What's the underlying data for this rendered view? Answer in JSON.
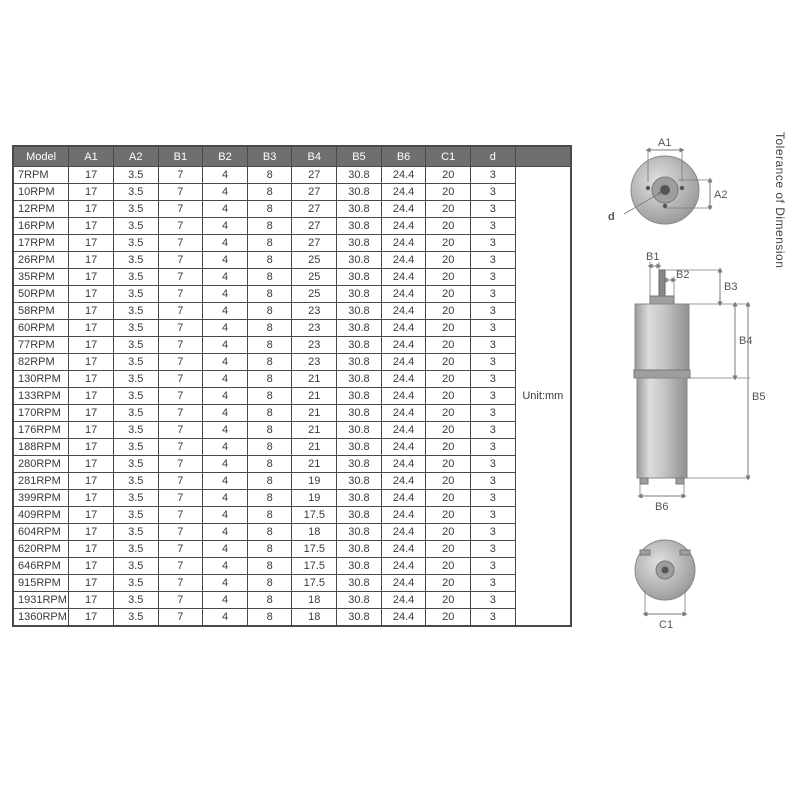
{
  "table": {
    "headers": [
      "Model",
      "A1",
      "A2",
      "B1",
      "B2",
      "B3",
      "B4",
      "B5",
      "B6",
      "C1",
      "d"
    ],
    "unit_label": "Unit:mm",
    "header_bg": "#6f6f6f",
    "header_fg": "#ffffff",
    "border_color": "#4a4a4a",
    "cell_fontsize": "11px",
    "rows": [
      {
        "model": "7RPM",
        "vals": [
          "17",
          "3.5",
          "7",
          "4",
          "8",
          "27",
          "30.8",
          "24.4",
          "20",
          "3"
        ]
      },
      {
        "model": "10RPM",
        "vals": [
          "17",
          "3.5",
          "7",
          "4",
          "8",
          "27",
          "30.8",
          "24.4",
          "20",
          "3"
        ]
      },
      {
        "model": "12RPM",
        "vals": [
          "17",
          "3.5",
          "7",
          "4",
          "8",
          "27",
          "30.8",
          "24.4",
          "20",
          "3"
        ]
      },
      {
        "model": "16RPM",
        "vals": [
          "17",
          "3.5",
          "7",
          "4",
          "8",
          "27",
          "30.8",
          "24.4",
          "20",
          "3"
        ]
      },
      {
        "model": "17RPM",
        "vals": [
          "17",
          "3.5",
          "7",
          "4",
          "8",
          "27",
          "30.8",
          "24.4",
          "20",
          "3"
        ]
      },
      {
        "model": "26RPM",
        "vals": [
          "17",
          "3.5",
          "7",
          "4",
          "8",
          "25",
          "30.8",
          "24.4",
          "20",
          "3"
        ]
      },
      {
        "model": "35RPM",
        "vals": [
          "17",
          "3.5",
          "7",
          "4",
          "8",
          "25",
          "30.8",
          "24.4",
          "20",
          "3"
        ]
      },
      {
        "model": "50RPM",
        "vals": [
          "17",
          "3.5",
          "7",
          "4",
          "8",
          "25",
          "30.8",
          "24.4",
          "20",
          "3"
        ]
      },
      {
        "model": "58RPM",
        "vals": [
          "17",
          "3.5",
          "7",
          "4",
          "8",
          "23",
          "30.8",
          "24.4",
          "20",
          "3"
        ]
      },
      {
        "model": "60RPM",
        "vals": [
          "17",
          "3.5",
          "7",
          "4",
          "8",
          "23",
          "30.8",
          "24.4",
          "20",
          "3"
        ]
      },
      {
        "model": "77RPM",
        "vals": [
          "17",
          "3.5",
          "7",
          "4",
          "8",
          "23",
          "30.8",
          "24.4",
          "20",
          "3"
        ]
      },
      {
        "model": "82RPM",
        "vals": [
          "17",
          "3.5",
          "7",
          "4",
          "8",
          "23",
          "30.8",
          "24.4",
          "20",
          "3"
        ]
      },
      {
        "model": "130RPM",
        "vals": [
          "17",
          "3.5",
          "7",
          "4",
          "8",
          "21",
          "30.8",
          "24.4",
          "20",
          "3"
        ]
      },
      {
        "model": "133RPM",
        "vals": [
          "17",
          "3.5",
          "7",
          "4",
          "8",
          "21",
          "30.8",
          "24.4",
          "20",
          "3"
        ]
      },
      {
        "model": "170RPM",
        "vals": [
          "17",
          "3.5",
          "7",
          "4",
          "8",
          "21",
          "30.8",
          "24.4",
          "20",
          "3"
        ]
      },
      {
        "model": "176RPM",
        "vals": [
          "17",
          "3.5",
          "7",
          "4",
          "8",
          "21",
          "30.8",
          "24.4",
          "20",
          "3"
        ]
      },
      {
        "model": "188RPM",
        "vals": [
          "17",
          "3.5",
          "7",
          "4",
          "8",
          "21",
          "30.8",
          "24.4",
          "20",
          "3"
        ]
      },
      {
        "model": "280RPM",
        "vals": [
          "17",
          "3.5",
          "7",
          "4",
          "8",
          "21",
          "30.8",
          "24.4",
          "20",
          "3"
        ]
      },
      {
        "model": "281RPM",
        "vals": [
          "17",
          "3.5",
          "7",
          "4",
          "8",
          "19",
          "30.8",
          "24.4",
          "20",
          "3"
        ]
      },
      {
        "model": "399RPM",
        "vals": [
          "17",
          "3.5",
          "7",
          "4",
          "8",
          "19",
          "30.8",
          "24.4",
          "20",
          "3"
        ]
      },
      {
        "model": "409RPM",
        "vals": [
          "17",
          "3.5",
          "7",
          "4",
          "8",
          "17.5",
          "30.8",
          "24.4",
          "20",
          "3"
        ]
      },
      {
        "model": "604RPM",
        "vals": [
          "17",
          "3.5",
          "7",
          "4",
          "8",
          "18",
          "30.8",
          "24.4",
          "20",
          "3"
        ]
      },
      {
        "model": "620RPM",
        "vals": [
          "17",
          "3.5",
          "7",
          "4",
          "8",
          "17.5",
          "30.8",
          "24.4",
          "20",
          "3"
        ]
      },
      {
        "model": "646RPM",
        "vals": [
          "17",
          "3.5",
          "7",
          "4",
          "8",
          "17.5",
          "30.8",
          "24.4",
          "20",
          "3"
        ]
      },
      {
        "model": "915RPM",
        "vals": [
          "17",
          "3.5",
          "7",
          "4",
          "8",
          "17.5",
          "30.8",
          "24.4",
          "20",
          "3"
        ]
      },
      {
        "model": "1931RPM",
        "vals": [
          "17",
          "3.5",
          "7",
          "4",
          "8",
          "18",
          "30.8",
          "24.4",
          "20",
          "3"
        ]
      },
      {
        "model": "1360RPM",
        "vals": [
          "17",
          "3.5",
          "7",
          "4",
          "8",
          "18",
          "30.8",
          "24.4",
          "20",
          "3"
        ]
      }
    ]
  },
  "diagram": {
    "tolerance_label": "Tolerance of Dimension",
    "labels": {
      "A1": "A1",
      "A2": "A2",
      "d": "d",
      "B1": "B1",
      "B2": "B2",
      "B3": "B3",
      "B4": "B4",
      "B5": "B5",
      "B6": "B6",
      "C1": "C1"
    },
    "colors": {
      "body": "#bfbfbf",
      "dark": "#9e9e9e",
      "light": "#d6d6d6",
      "dim": "#7a7a7a",
      "text": "#555",
      "hole": "#555"
    }
  }
}
